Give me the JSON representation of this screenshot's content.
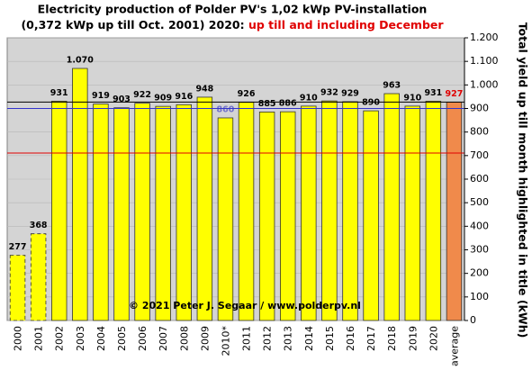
{
  "chart_data": {
    "type": "bar",
    "title": "Electricity production  of Polder PV's 1,02 kWp PV-installation",
    "subtitle": "(0,372 kWp up till Oct. 2001) 2020:",
    "subtitle_highlight": "up till and including  December",
    "y_label": "Total yield up till month highlighted in title (kWh)",
    "annotation": "© 2021 Peter J. Segaar / www.polderpv.nl",
    "categories": [
      "2000",
      "2001",
      "2002",
      "2003",
      "2004",
      "2005",
      "2006",
      "2007",
      "2008",
      "2009",
      "2010*",
      "2011",
      "2012",
      "2013",
      "2014",
      "2015",
      "2016",
      "2017",
      "2018",
      "2019",
      "2020",
      "average"
    ],
    "values": [
      277,
      368,
      931,
      1070,
      919,
      903,
      922,
      909,
      916,
      948,
      860,
      926,
      885,
      886,
      910,
      932,
      929,
      890,
      963,
      910,
      931,
      927
    ],
    "value_labels": [
      "277",
      "368",
      "931",
      "1.070",
      "919",
      "903",
      "922",
      "909",
      "916",
      "948",
      "860",
      "926",
      "885",
      "886",
      "910",
      "932",
      "929",
      "890",
      "963",
      "910",
      "931",
      "927"
    ],
    "bar_colors": [
      "#ffff00",
      "#ffff00",
      "#ffff00",
      "#ffff00",
      "#ffff00",
      "#ffff00",
      "#ffff00",
      "#ffff00",
      "#ffff00",
      "#ffff00",
      "#ffff00",
      "#ffff00",
      "#ffff00",
      "#ffff00",
      "#ffff00",
      "#ffff00",
      "#ffff00",
      "#ffff00",
      "#ffff00",
      "#ffff00",
      "#ffff00",
      "#f08a4b"
    ],
    "value_label_colors": [
      "#000",
      "#000",
      "#000",
      "#000",
      "#000",
      "#000",
      "#000",
      "#000",
      "#000",
      "#000",
      "#7070c8",
      "#000",
      "#000",
      "#000",
      "#000",
      "#000",
      "#000",
      "#000",
      "#000",
      "#000",
      "#000",
      "#e00000"
    ],
    "dashed_bars": [
      true,
      true,
      false,
      false,
      false,
      false,
      false,
      false,
      false,
      false,
      false,
      false,
      false,
      false,
      false,
      false,
      false,
      false,
      false,
      false,
      false,
      false
    ],
    "reference_lines": [
      {
        "value": 927,
        "color": "#000000"
      },
      {
        "value": 900,
        "color": "#3333cc"
      },
      {
        "value": 711,
        "color": "#e00000"
      }
    ],
    "ylim": [
      0,
      1200
    ],
    "yticks": [
      0,
      100,
      200,
      300,
      400,
      500,
      600,
      700,
      800,
      900,
      {
        "value": 1000,
        "label": "1.000"
      },
      {
        "value": 1100,
        "label": "1.100"
      },
      {
        "value": 1200,
        "label": "1.200"
      }
    ],
    "grid": true,
    "y_axis_side": "right",
    "background": "#d4d4d4"
  }
}
